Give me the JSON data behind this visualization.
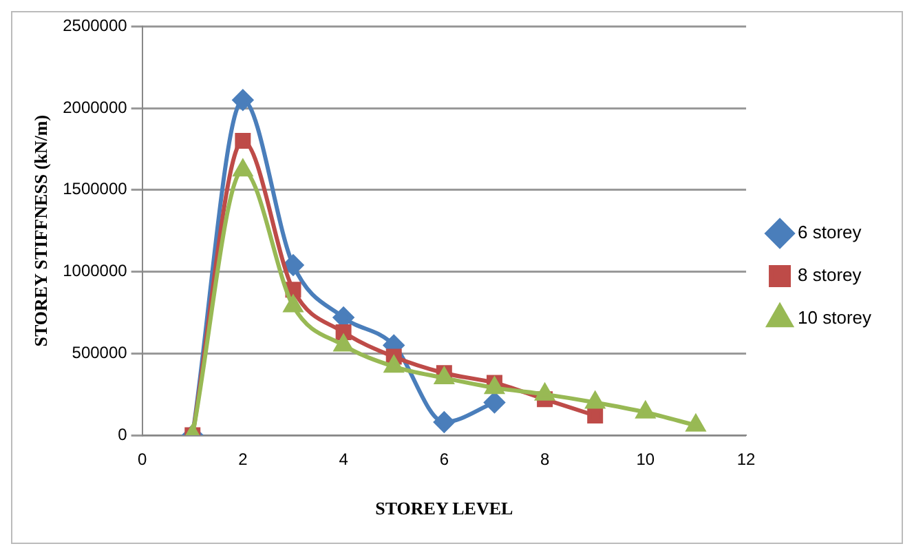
{
  "chart_data": {
    "type": "line",
    "xlabel": "STOREY LEVEL",
    "ylabel": "STOREY STIFFNESS (kN/m)",
    "xlim": [
      0,
      12
    ],
    "xticks": [
      0,
      2,
      4,
      6,
      8,
      10,
      12
    ],
    "ylim": [
      0,
      2500000
    ],
    "yticks": [
      0,
      500000,
      1000000,
      1500000,
      2000000,
      2500000
    ],
    "grid": "y",
    "legend": "right",
    "series": [
      {
        "name": "6 storey",
        "color": "#4a7ebb",
        "marker": "diamond",
        "x": [
          1,
          2,
          3,
          4,
          5,
          6,
          7
        ],
        "values": [
          0,
          2050000,
          1040000,
          720000,
          550000,
          80000,
          200000
        ]
      },
      {
        "name": "8 storey",
        "color": "#be4b48",
        "marker": "square",
        "x": [
          1,
          2,
          3,
          4,
          5,
          6,
          7,
          8,
          9
        ],
        "values": [
          0,
          1800000,
          890000,
          630000,
          480000,
          380000,
          320000,
          220000,
          120000
        ]
      },
      {
        "name": "10 storey",
        "color": "#98b954",
        "marker": "triangle",
        "x": [
          1,
          2,
          3,
          4,
          5,
          6,
          7,
          8,
          9,
          10,
          11
        ],
        "values": [
          0,
          1620000,
          790000,
          550000,
          420000,
          350000,
          290000,
          250000,
          200000,
          140000,
          60000
        ]
      }
    ]
  }
}
